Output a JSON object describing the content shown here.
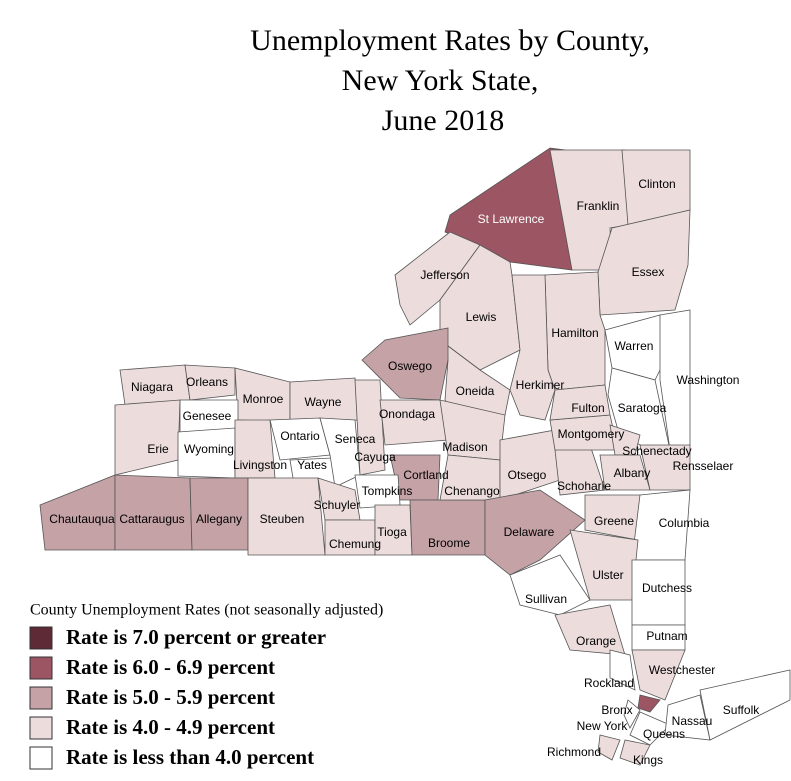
{
  "title": [
    "Unemployment Rates by County,",
    "New York State,",
    "June 2018"
  ],
  "legend": {
    "title": "County Unemployment Rates (not seasonally adjusted)",
    "entries": [
      {
        "label": "Rate is 7.0 percent or greater",
        "color": "#5e2a35"
      },
      {
        "label": "Rate is 6.0 - 6.9 percent",
        "color": "#9b5563"
      },
      {
        "label": "Rate is 5.0 - 5.9 percent",
        "color": "#c4a2a6"
      },
      {
        "label": "Rate is 4.0 - 4.9 percent",
        "color": "#ecdcdc"
      },
      {
        "label": "Rate is less than 4.0 percent",
        "color": "#ffffff"
      }
    ]
  },
  "counties": [
    {
      "name": "St Lawrence",
      "color": "#9b5563"
    },
    {
      "name": "Franklin",
      "color": "#ecdcdc"
    },
    {
      "name": "Clinton",
      "color": "#ecdcdc"
    },
    {
      "name": "Essex",
      "color": "#ecdcdc"
    },
    {
      "name": "Jefferson",
      "color": "#ecdcdc"
    },
    {
      "name": "Lewis",
      "color": "#ecdcdc"
    },
    {
      "name": "Hamilton",
      "color": "#ecdcdc"
    },
    {
      "name": "Herkimer",
      "color": "#ecdcdc"
    },
    {
      "name": "Oneida",
      "color": "#ecdcdc"
    },
    {
      "name": "Warren",
      "color": "#ffffff"
    },
    {
      "name": "Washington",
      "color": "#ffffff"
    },
    {
      "name": "Saratoga",
      "color": "#ffffff"
    },
    {
      "name": "Oswego",
      "color": "#c4a2a6"
    },
    {
      "name": "Niagara",
      "color": "#ecdcdc"
    },
    {
      "name": "Orleans",
      "color": "#ecdcdc"
    },
    {
      "name": "Monroe",
      "color": "#ecdcdc"
    },
    {
      "name": "Wayne",
      "color": "#ecdcdc"
    },
    {
      "name": "Genesee",
      "color": "#ffffff"
    },
    {
      "name": "Erie",
      "color": "#ecdcdc"
    },
    {
      "name": "Wyoming",
      "color": "#ffffff"
    },
    {
      "name": "Livingston",
      "color": "#ecdcdc"
    },
    {
      "name": "Ontario",
      "color": "#ffffff"
    },
    {
      "name": "Yates",
      "color": "#ffffff"
    },
    {
      "name": "Seneca",
      "color": "#ffffff"
    },
    {
      "name": "Cayuga",
      "color": "#ecdcdc"
    },
    {
      "name": "Onondaga",
      "color": "#ecdcdc"
    },
    {
      "name": "Madison",
      "color": "#ecdcdc"
    },
    {
      "name": "Cortland",
      "color": "#c4a2a6"
    },
    {
      "name": "Chautauqua",
      "color": "#c4a2a6"
    },
    {
      "name": "Cattaraugus",
      "color": "#c4a2a6"
    },
    {
      "name": "Allegany",
      "color": "#c4a2a6"
    },
    {
      "name": "Steuben",
      "color": "#ecdcdc"
    },
    {
      "name": "Schuyler",
      "color": "#ecdcdc"
    },
    {
      "name": "Chemung",
      "color": "#ecdcdc"
    },
    {
      "name": "Tompkins",
      "color": "#ffffff"
    },
    {
      "name": "Tioga",
      "color": "#ecdcdc"
    },
    {
      "name": "Broome",
      "color": "#c4a2a6"
    },
    {
      "name": "Chenango",
      "color": "#ecdcdc"
    },
    {
      "name": "Otsego",
      "color": "#ecdcdc"
    },
    {
      "name": "Delaware",
      "color": "#c4a2a6"
    },
    {
      "name": "Schoharie",
      "color": "#ecdcdc"
    },
    {
      "name": "Montgomery",
      "color": "#ecdcdc"
    },
    {
      "name": "Fulton",
      "color": "#ecdcdc"
    },
    {
      "name": "Schenectady",
      "color": "#ecdcdc"
    },
    {
      "name": "Albany",
      "color": "#ecdcdc"
    },
    {
      "name": "Rensselaer",
      "color": "#ecdcdc"
    },
    {
      "name": "Greene",
      "color": "#ecdcdc"
    },
    {
      "name": "Columbia",
      "color": "#ffffff"
    },
    {
      "name": "Ulster",
      "color": "#ecdcdc"
    },
    {
      "name": "Sullivan",
      "color": "#ffffff"
    },
    {
      "name": "Dutchess",
      "color": "#ffffff"
    },
    {
      "name": "Orange",
      "color": "#ecdcdc"
    },
    {
      "name": "Putnam",
      "color": "#ffffff"
    },
    {
      "name": "Westchester",
      "color": "#ecdcdc"
    },
    {
      "name": "Rockland",
      "color": "#ffffff"
    },
    {
      "name": "Bronx",
      "color": "#9b5563"
    },
    {
      "name": "New York",
      "color": "#ffffff"
    },
    {
      "name": "Queens",
      "color": "#ffffff"
    },
    {
      "name": "Kings",
      "color": "#ecdcdc"
    },
    {
      "name": "Richmond",
      "color": "#ecdcdc"
    },
    {
      "name": "Nassau",
      "color": "#ffffff"
    },
    {
      "name": "Suffolk",
      "color": "#ffffff"
    }
  ]
}
